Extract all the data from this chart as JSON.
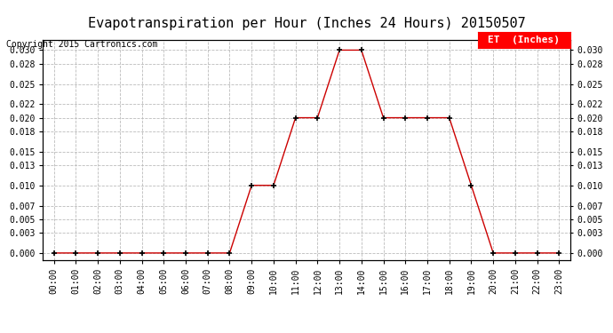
{
  "title": "Evapotranspiration per Hour (Inches 24 Hours) 20150507",
  "copyright": "Copyright 2015 Cartronics.com",
  "legend_label": "ET  (Inches)",
  "legend_bg": "#ff0000",
  "legend_text_color": "#ffffff",
  "line_color": "#cc0000",
  "marker_color": "#000000",
  "background_color": "#ffffff",
  "grid_color": "#bbbbbb",
  "hours": [
    "00:00",
    "01:00",
    "02:00",
    "03:00",
    "04:00",
    "05:00",
    "06:00",
    "07:00",
    "08:00",
    "09:00",
    "10:00",
    "11:00",
    "12:00",
    "13:00",
    "14:00",
    "15:00",
    "16:00",
    "17:00",
    "18:00",
    "19:00",
    "20:00",
    "21:00",
    "22:00",
    "23:00"
  ],
  "et_values": [
    0.0,
    0.0,
    0.0,
    0.0,
    0.0,
    0.0,
    0.0,
    0.0,
    0.0,
    0.01,
    0.01,
    0.02,
    0.02,
    0.03,
    0.03,
    0.02,
    0.02,
    0.02,
    0.02,
    0.01,
    0.0,
    0.0,
    0.0,
    0.0
  ],
  "yticks": [
    0.0,
    0.003,
    0.005,
    0.007,
    0.01,
    0.013,
    0.015,
    0.018,
    0.02,
    0.022,
    0.025,
    0.028,
    0.03
  ],
  "ylim": [
    -0.001,
    0.0315
  ],
  "title_fontsize": 11,
  "copyright_fontsize": 7,
  "tick_fontsize": 7,
  "legend_fontsize": 8
}
